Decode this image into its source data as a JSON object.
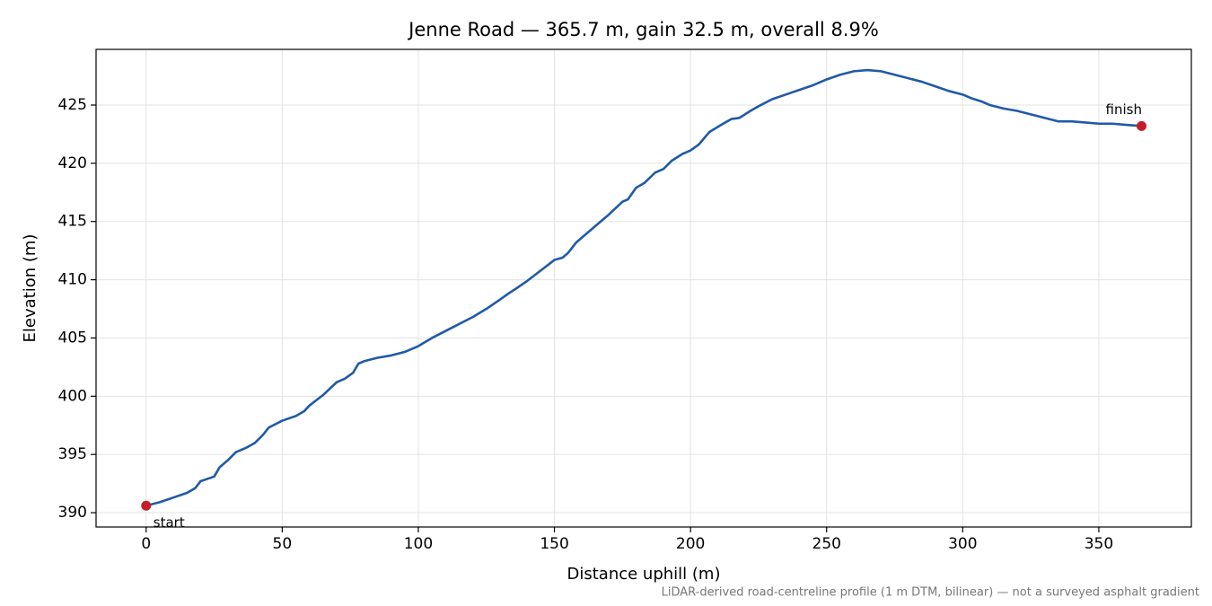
{
  "chart_data": {
    "type": "line",
    "title": "Jenne Road — 365.7 m, gain 32.5 m, overall 8.9%",
    "xlabel": "Distance uphill (m)",
    "ylabel": "Elevation (m)",
    "footnote": "LiDAR-derived road-centreline profile (1 m DTM, bilinear) — not a surveyed asphalt gradient",
    "x": [
      0,
      5,
      10,
      15,
      18,
      20,
      25,
      27,
      30,
      33,
      37,
      40,
      43,
      45,
      50,
      55,
      58,
      60,
      65,
      70,
      73,
      76,
      78,
      80,
      85,
      90,
      95,
      100,
      105,
      110,
      115,
      120,
      125,
      130,
      133,
      135,
      140,
      145,
      150,
      153,
      155,
      158,
      160,
      165,
      170,
      175,
      177,
      180,
      183,
      187,
      190,
      193,
      197,
      200,
      203,
      207,
      212,
      215,
      218,
      222,
      225,
      230,
      235,
      240,
      245,
      250,
      255,
      260,
      265,
      270,
      275,
      280,
      285,
      290,
      295,
      300,
      303,
      307,
      310,
      315,
      320,
      325,
      330,
      335,
      340,
      345,
      350,
      355,
      360,
      365.7
    ],
    "series": [
      {
        "color": "#1f5aa8",
        "values": [
          390.6,
          390.9,
          391.3,
          391.7,
          392.1,
          392.7,
          393.1,
          393.9,
          394.5,
          395.2,
          395.6,
          396.0,
          396.7,
          397.3,
          397.9,
          398.3,
          398.7,
          399.2,
          400.1,
          401.2,
          401.5,
          402.0,
          402.8,
          403.0,
          403.3,
          403.5,
          403.8,
          404.3,
          405.0,
          405.6,
          406.2,
          406.8,
          407.5,
          408.3,
          408.8,
          409.1,
          409.9,
          410.8,
          411.7,
          411.9,
          412.3,
          413.2,
          413.6,
          414.6,
          415.6,
          416.7,
          416.9,
          417.9,
          418.3,
          419.2,
          419.5,
          420.2,
          420.8,
          421.1,
          421.6,
          422.7,
          423.4,
          423.8,
          423.9,
          424.5,
          424.9,
          425.5,
          425.9,
          426.3,
          426.7,
          427.2,
          427.6,
          427.9,
          428.0,
          427.9,
          427.6,
          427.3,
          427.0,
          426.6,
          426.2,
          425.9,
          425.6,
          425.3,
          425.0,
          424.7,
          424.5,
          424.2,
          423.9,
          423.6,
          423.6,
          423.5,
          423.4,
          423.4,
          423.3,
          423.2
        ]
      }
    ],
    "points": [
      {
        "label": "start",
        "x": 0,
        "y": 390.6
      },
      {
        "label": "finish",
        "x": 365.7,
        "y": 423.2
      }
    ],
    "point_color": "#c41e2a",
    "xlim": [
      -18.4,
      384.0
    ],
    "ylim": [
      388.77,
      429.78
    ],
    "xticks": [
      0,
      50,
      100,
      150,
      200,
      250,
      300,
      350
    ],
    "yticks": [
      390,
      395,
      400,
      405,
      410,
      415,
      420,
      425
    ],
    "grid": true
  }
}
